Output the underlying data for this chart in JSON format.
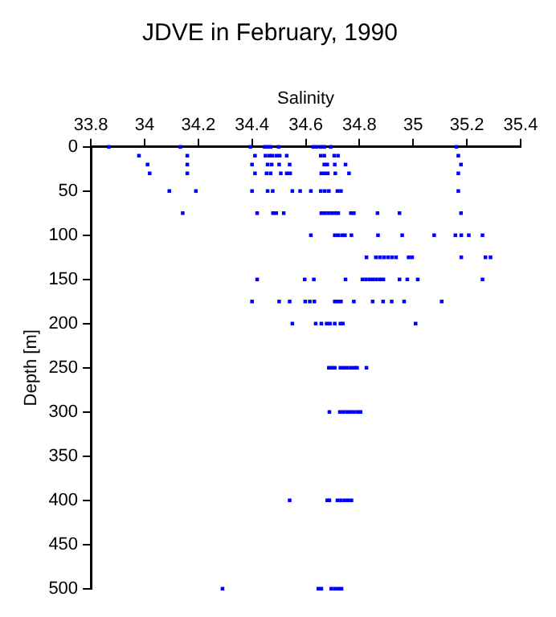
{
  "chart_data": {
    "type": "scatter",
    "title": "JDVE in February, 1990",
    "xlabel": "Salinity",
    "ylabel": "Depth [m]",
    "series": [
      {
        "color": "#0000ff",
        "x": [
          33.867,
          34.133,
          34.394,
          34.447,
          34.458,
          34.469,
          34.499,
          34.628,
          34.641,
          34.656,
          34.669,
          34.693,
          35.161,
          33.979,
          34.159,
          34.411,
          34.45,
          34.464,
          34.475,
          34.49,
          34.503,
          34.529,
          34.656,
          34.669,
          34.706,
          34.72,
          35.168,
          34.011,
          34.159,
          34.4,
          34.458,
          34.473,
          34.501,
          34.54,
          34.669,
          34.68,
          34.708,
          34.748,
          35.178,
          34.019,
          34.159,
          34.411,
          34.454,
          34.469,
          34.507,
          34.529,
          34.542,
          34.658,
          34.671,
          34.682,
          34.71,
          34.761,
          35.168,
          34.092,
          34.191,
          34.4,
          34.458,
          34.477,
          34.55,
          34.579,
          34.619,
          34.656,
          34.671,
          34.686,
          34.718,
          34.731,
          35.168,
          34.142,
          34.419,
          34.478,
          34.49,
          34.518,
          34.658,
          34.671,
          34.684,
          34.697,
          34.71,
          34.721,
          34.768,
          34.779,
          34.867,
          34.949,
          35.178,
          34.619,
          34.708,
          34.721,
          34.735,
          34.746,
          34.77,
          34.869,
          34.959,
          35.078,
          35.157,
          35.179,
          35.207,
          35.258,
          34.826,
          34.861,
          34.876,
          34.891,
          34.906,
          34.921,
          34.936,
          34.983,
          34.996,
          35.179,
          35.269,
          35.288,
          34.419,
          34.596,
          34.63,
          34.748,
          34.811,
          34.824,
          34.837,
          34.85,
          34.863,
          34.876,
          34.889,
          34.949,
          34.978,
          35.017,
          35.258,
          34.4,
          34.501,
          34.54,
          34.598,
          34.615,
          34.632,
          34.708,
          34.72,
          34.731,
          34.779,
          34.849,
          34.888,
          34.92,
          34.966,
          35.106,
          34.55,
          34.637,
          34.658,
          34.678,
          34.69,
          34.708,
          34.729,
          34.738,
          35.009,
          34.686,
          34.697,
          34.708,
          34.729,
          34.742,
          34.755,
          34.768,
          34.781,
          34.791,
          34.826,
          34.688,
          34.727,
          34.74,
          34.753,
          34.766,
          34.779,
          34.792,
          34.804,
          34.54,
          34.68,
          34.688,
          34.718,
          34.731,
          34.744,
          34.757,
          34.77,
          34.29,
          34.647,
          34.658,
          34.695,
          34.708,
          34.721,
          34.733
        ],
        "values": [
          0,
          0,
          0,
          0,
          0,
          0,
          0,
          0,
          0,
          0,
          0,
          0,
          0,
          10,
          10,
          10,
          10,
          10,
          10,
          10,
          10,
          10,
          10,
          10,
          10,
          10,
          10,
          20,
          20,
          20,
          20,
          20,
          20,
          20,
          20,
          20,
          20,
          20,
          20,
          30,
          30,
          30,
          30,
          30,
          30,
          30,
          30,
          30,
          30,
          30,
          30,
          30,
          30,
          50,
          50,
          50,
          50,
          50,
          50,
          50,
          50,
          50,
          50,
          50,
          50,
          50,
          50,
          75,
          75,
          75,
          75,
          75,
          75,
          75,
          75,
          75,
          75,
          75,
          75,
          75,
          75,
          75,
          75,
          100,
          100,
          100,
          100,
          100,
          100,
          100,
          100,
          100,
          100,
          100,
          100,
          100,
          125,
          125,
          125,
          125,
          125,
          125,
          125,
          125,
          125,
          125,
          125,
          125,
          150,
          150,
          150,
          150,
          150,
          150,
          150,
          150,
          150,
          150,
          150,
          150,
          150,
          150,
          150,
          175,
          175,
          175,
          175,
          175,
          175,
          175,
          175,
          175,
          175,
          175,
          175,
          175,
          175,
          175,
          200,
          200,
          200,
          200,
          200,
          200,
          200,
          200,
          200,
          250,
          250,
          250,
          250,
          250,
          250,
          250,
          250,
          250,
          250,
          300,
          300,
          300,
          300,
          300,
          300,
          300,
          300,
          400,
          400,
          400,
          400,
          400,
          400,
          400,
          400,
          500,
          500,
          500,
          500,
          500,
          500,
          500
        ]
      }
    ],
    "xlim": [
      33.8,
      35.4
    ],
    "xticks": [
      33.8,
      34,
      34.2,
      34.4,
      34.6,
      34.8,
      35,
      35.2,
      35.4
    ],
    "ylim": [
      500,
      0
    ],
    "yticks": [
      0,
      50,
      100,
      150,
      200,
      250,
      300,
      350,
      400,
      450,
      500
    ],
    "grid": false,
    "legend": false,
    "marker": "square"
  }
}
